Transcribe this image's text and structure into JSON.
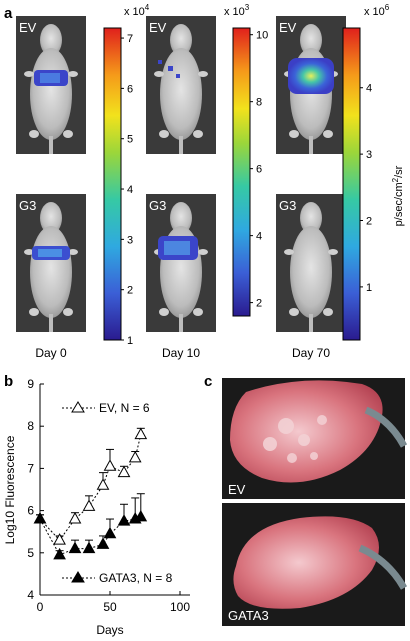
{
  "panel_a": {
    "label": "a",
    "rows": [
      "EV",
      "G3"
    ],
    "columns": [
      {
        "day": "Day 0",
        "exponent_label": "x 10",
        "exponent": "4",
        "ticks": [
          "7",
          "6",
          "5",
          "4",
          "3",
          "2",
          "1"
        ],
        "tick_values": [
          7,
          6,
          5,
          4,
          3,
          2,
          1
        ],
        "min": 1,
        "max": 7.2
      },
      {
        "day": "Day 10",
        "exponent_label": "x 10",
        "exponent": "3",
        "ticks": [
          "10",
          "8",
          "6",
          "4",
          "2"
        ],
        "tick_values": [
          10,
          8,
          6,
          4,
          2
        ],
        "min": 1.6,
        "max": 10.2
      },
      {
        "day": "Day 70",
        "exponent_label": "x 10",
        "exponent": "6",
        "ticks": [
          "4",
          "3",
          "2",
          "1"
        ],
        "tick_values": [
          4,
          3,
          2,
          1
        ],
        "min": 0.2,
        "max": 4.9
      }
    ],
    "units_prefix": "p/sec/cm",
    "units_exp": "2",
    "units_suffix": "/sr"
  },
  "panel_b": {
    "label": "b",
    "ylabel": "Log10 Fluorescence",
    "xlabel": "Days",
    "legend_ev": "EV, N = 6",
    "legend_gata3": "GATA3, N = 8"
  },
  "panel_c": {
    "label": "c",
    "label_ev": "EV",
    "label_gata3": "GATA3"
  },
  "chart_data": {
    "type": "line",
    "xlabel": "Days",
    "ylabel": "Log10 Fluorescence",
    "xlim": [
      0,
      100
    ],
    "ylim": [
      4,
      9
    ],
    "xticks": [
      0,
      50,
      100
    ],
    "yticks": [
      4,
      5,
      6,
      7,
      8,
      9
    ],
    "grid": false,
    "series": [
      {
        "name": "EV, N = 6",
        "marker": "open-triangle",
        "x": [
          0,
          14,
          25,
          35,
          45,
          50,
          60,
          68,
          72
        ],
        "y": [
          5.8,
          5.3,
          5.8,
          6.1,
          6.6,
          7.05,
          6.9,
          7.25,
          7.8
        ],
        "err": [
          0.1,
          0.1,
          0.15,
          0.25,
          0.3,
          0.4,
          0.15,
          0.15,
          0.15
        ]
      },
      {
        "name": "GATA3, N = 8",
        "marker": "filled-triangle",
        "x": [
          0,
          14,
          25,
          35,
          45,
          50,
          60,
          68,
          72
        ],
        "y": [
          5.8,
          4.95,
          5.1,
          5.1,
          5.2,
          5.45,
          5.75,
          5.8,
          5.85
        ],
        "err": [
          0.1,
          0.1,
          0.2,
          0.2,
          0.2,
          0.35,
          0.4,
          0.5,
          0.55
        ]
      }
    ]
  }
}
